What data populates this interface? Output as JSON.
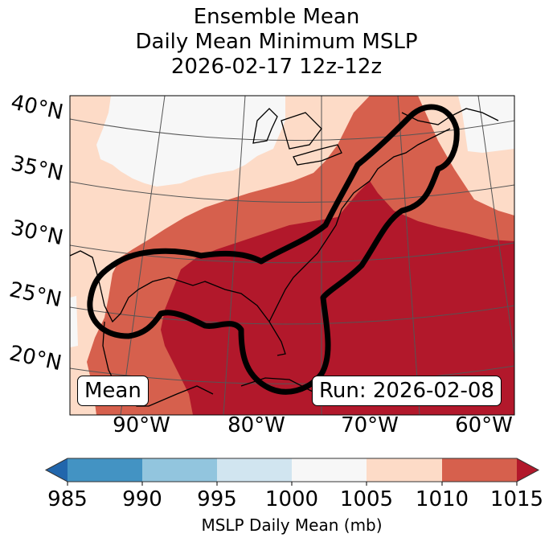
{
  "title": {
    "lines": [
      "Ensemble Mean",
      "Daily Mean Minimum MSLP",
      "2026-02-17 12z-12z"
    ]
  },
  "map": {
    "lat_labels": [
      "40°N",
      "35°N",
      "30°N",
      "25°N",
      "20°N"
    ],
    "lon_labels": [
      "90°W",
      "80°W",
      "70°W",
      "60°W"
    ],
    "annotations": {
      "left": "Mean",
      "right": "Run: 2026-02-08"
    },
    "field": "Ensemble mean daily mean minimum MSLP shaded by 5 mb bins; thick black contour outlining the lowest-pressure corridor from the western Gulf of Mexico across Florida up the US East Coast to Nova Scotia"
  },
  "colorbar": {
    "label": "MSLP Daily Mean (mb)",
    "ticks": [
      "985",
      "990",
      "995",
      "1000",
      "1005",
      "1010",
      "1015"
    ],
    "bins": [
      {
        "range": "<985",
        "color": "#2166ac"
      },
      {
        "range": "985-990",
        "color": "#4393c3"
      },
      {
        "range": "990-995",
        "color": "#92c5de"
      },
      {
        "range": "995-1000",
        "color": "#d1e5f0"
      },
      {
        "range": "1000-1005",
        "color": "#f7f7f7"
      },
      {
        "range": "1005-1010",
        "color": "#fddbc7"
      },
      {
        "range": "1010-1015",
        "color": "#d6604d"
      },
      {
        "range": ">1015",
        "color": "#b2182b"
      }
    ],
    "extend": "both"
  },
  "colors": {
    "bin_1000_1005": "#f7f7f7",
    "bin_1005_1010": "#fddbc7",
    "bin_1010_1015": "#d6604d",
    "bin_over_1015": "#b2182b",
    "contour": "#000000",
    "gridline": "#555555"
  }
}
